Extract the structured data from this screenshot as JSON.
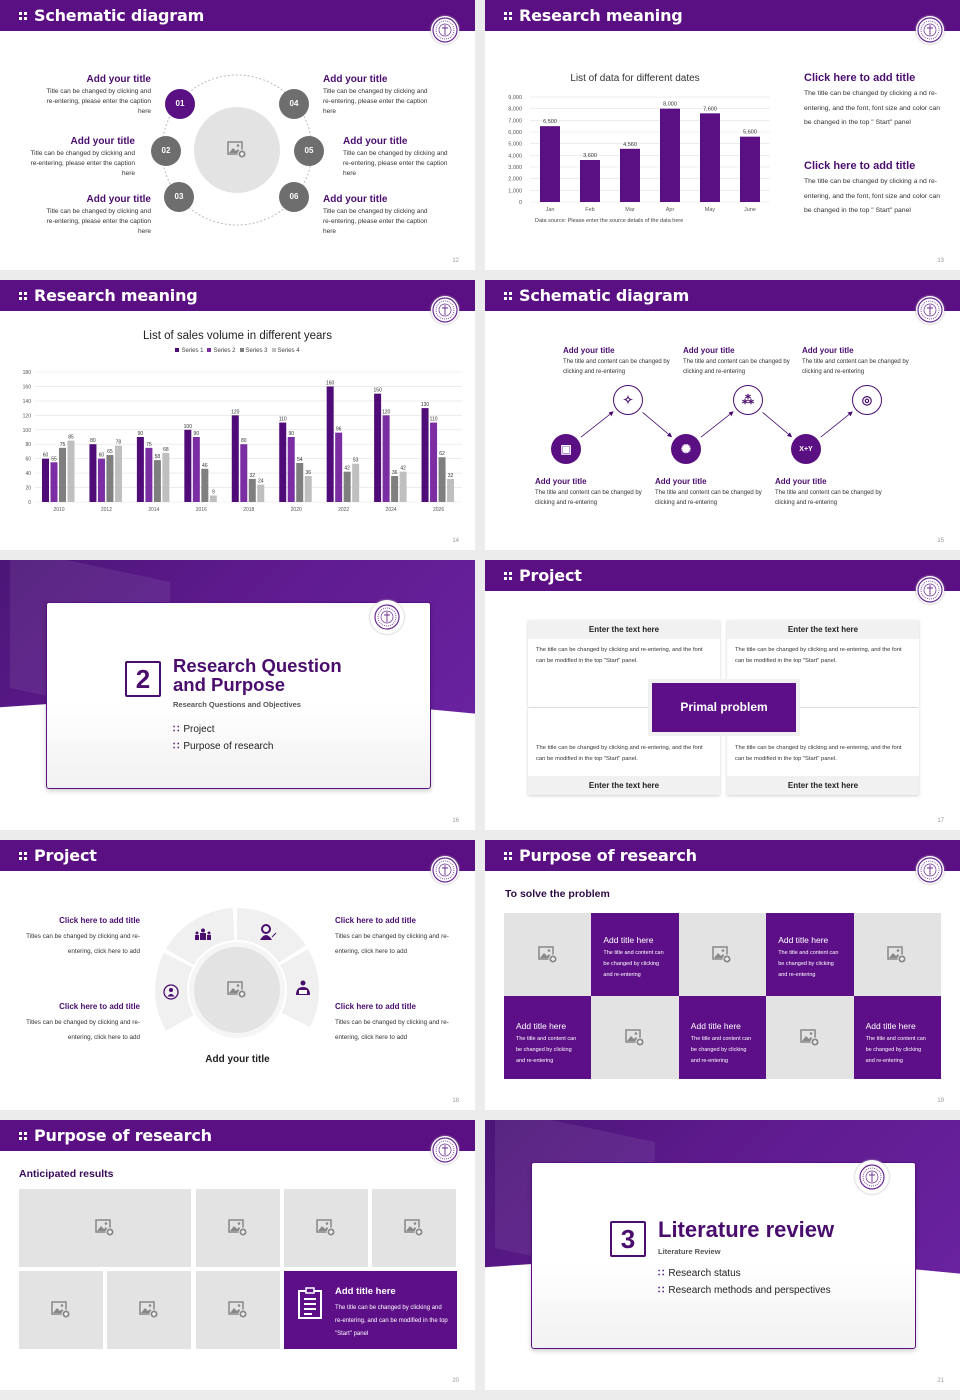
{
  "colors": {
    "primary": "#5a0f82",
    "title": "#4a0d6e",
    "gray": "#e3e3e3",
    "dark_gray": "#6e6e6e"
  },
  "slides": [
    {
      "title": "Schematic diagram",
      "page": "12",
      "center_icon": "image-placeholder-icon",
      "items": [
        {
          "num": "01",
          "title": "Add your title",
          "text": "Title can be changed by clicking and re-entering, please enter the caption here"
        },
        {
          "num": "02",
          "title": "Add your title",
          "text": "Title can be changed by clicking and re-entering, please enter the caption here"
        },
        {
          "num": "03",
          "title": "Add your title",
          "text": "Title can be changed by clicking and re-entering, please enter the caption here"
        },
        {
          "num": "04",
          "title": "Add your title",
          "text": "Title can be changed by clicking and re-entering, please enter the caption here"
        },
        {
          "num": "05",
          "title": "Add your title",
          "text": "Title can be changed by clicking and re-entering, please enter the caption here"
        },
        {
          "num": "06",
          "title": "Add your title",
          "text": "Title can be changed by clicking and re-entering, please enter the caption here"
        }
      ]
    },
    {
      "title": "Research meaning",
      "page": "13",
      "source": "Data source: Please enter the source details of the data here",
      "side": [
        {
          "title": "Click here to add title",
          "text": "The title can be changed by clicking a nd re-entering, and the font, font size and color can be changed in the top \" Start\" panel"
        },
        {
          "title": "Click here to add title",
          "text": "The title can be changed by clicking a nd re-entering, and the font, font size and color can be changed in the top \" Start\" panel"
        }
      ]
    },
    {
      "title": "Research meaning",
      "page": "14"
    },
    {
      "title": "Schematic diagram",
      "page": "15",
      "items": [
        {
          "title": "Add your title",
          "text": "The title and content can be changed by clicking and re-entering",
          "icon": "diagram-icon",
          "filled": true
        },
        {
          "title": "Add your title",
          "text": "The title and content can be changed by clicking and re-entering",
          "icon": "sparkles-icon",
          "filled": false
        },
        {
          "title": "Add your title",
          "text": "The title and content can be changed by clicking and re-entering",
          "icon": "network-icon",
          "filled": true
        },
        {
          "title": "Add your title",
          "text": "The title and content can be changed by clicking and re-entering",
          "icon": "connections-icon",
          "filled": false
        },
        {
          "title": "Add your title",
          "text": "The title and content can be changed by clicking and re-entering",
          "icon": "formula-icon",
          "icon_text": "X+Y",
          "filled": true
        },
        {
          "title": "Add your title",
          "text": "The title and content can be changed by clicking and re-entering",
          "icon": "target-icon",
          "filled": false
        }
      ]
    },
    {
      "page": "16",
      "number": "2",
      "title": "Research Question and Purpose",
      "subtitle": "Research Questions and Objectives",
      "items": [
        "Project",
        "Purpose of research"
      ]
    },
    {
      "title": "Project",
      "page": "17",
      "center": "Primal problem",
      "boxes": [
        {
          "heading": "Enter the text here",
          "text": "The title can be changed by clicking and re-entering, and the font can be modified in the top \"Start\" panel."
        },
        {
          "heading": "Enter the text here",
          "text": "The title can be changed by clicking and re-entering, and the font can be modified in the top \"Start\" panel."
        },
        {
          "heading": "Enter the text here",
          "text": "The title can be changed by clicking and re-entering, and the font can be modified in the top \"Start\" panel."
        },
        {
          "heading": "Enter the text here",
          "text": "The title can be changed by clicking and re-entering, and the font can be modified in the top \"Start\" panel."
        }
      ]
    },
    {
      "title": "Project",
      "page": "18",
      "caption": "Add your title",
      "items": [
        {
          "title": "Click here to add title",
          "text": "Titles can be changed by clicking and re-entering, click here to add"
        },
        {
          "title": "Click here to add title",
          "text": "Titles can be changed by clicking and re-entering, click here to add"
        },
        {
          "title": "Click here to add title",
          "text": "Titles can be changed by clicking and re-entering, click here to add"
        },
        {
          "title": "Click here to add title",
          "text": "Titles can be changed by clicking and re-entering, click here to add"
        }
      ],
      "icons": [
        "person-circle-icon",
        "team-icon",
        "teacher-icon",
        "reader-icon"
      ]
    },
    {
      "title": "Purpose of research",
      "page": "19",
      "subtitle": "To solve the problem",
      "cells": [
        {
          "title": "Add title here",
          "text": "The title and content can be changed by clicking and re-entering"
        },
        {
          "title": "Add title here",
          "text": "The title and content can be changed by clicking and re-entering"
        },
        {
          "title": "Add title here",
          "text": "The title and content can be changed by clicking and re-entering"
        },
        {
          "title": "Add title here",
          "text": "The title and content can be changed by clicking and re-entering"
        },
        {
          "title": "Add title here",
          "text": "The title and content can be changed by clicking and re-entering"
        }
      ]
    },
    {
      "title": "Purpose of research",
      "page": "20",
      "subtitle": "Anticipated results",
      "card": {
        "title": "Add title here",
        "text": "The title can be changed by clicking and re-entering, and can be modified in the top \"Start\" panel",
        "icon": "clipboard-icon"
      }
    },
    {
      "page": "21",
      "number": "3",
      "title": "Literature review",
      "subtitle": "Literature Review",
      "items": [
        "Research status",
        "Research methods and perspectives"
      ]
    }
  ],
  "chart_data": [
    {
      "type": "bar",
      "title": "List of data for different dates",
      "categories": [
        "Jan",
        "Feb",
        "Mar",
        "Apr",
        "May",
        "June"
      ],
      "values": [
        6500,
        3600,
        4560,
        8000,
        7600,
        5600
      ],
      "ylim": [
        0,
        9000
      ],
      "yticks": [
        0,
        1000,
        2000,
        3000,
        4000,
        5000,
        6000,
        7000,
        8000,
        9000
      ],
      "grid": true,
      "color": "#5a0f82",
      "data_labels": true
    },
    {
      "type": "bar",
      "title": "List of sales volume in different years",
      "categories": [
        "2010",
        "2012",
        "2014",
        "2016",
        "2018",
        "2020",
        "2022",
        "2024",
        "2026"
      ],
      "series": [
        {
          "name": "Series 1",
          "color": "#4f0b78",
          "values": [
            60,
            80,
            90,
            100,
            120,
            110,
            160,
            150,
            130
          ]
        },
        {
          "name": "Series 2",
          "color": "#7b2ea3",
          "values": [
            55,
            60,
            75,
            90,
            80,
            90,
            96,
            120,
            110
          ]
        },
        {
          "name": "Series 3",
          "color": "#7f7f7f",
          "values": [
            75,
            65,
            58,
            46,
            32,
            54,
            42,
            36,
            62
          ]
        },
        {
          "name": "Series 4",
          "color": "#bfbfbf",
          "values": [
            85,
            78,
            68,
            9,
            24,
            36,
            53,
            42,
            32
          ]
        }
      ],
      "ylim": [
        0,
        180
      ],
      "yticks": [
        0,
        20,
        40,
        60,
        80,
        100,
        120,
        140,
        160,
        180
      ],
      "grid": true,
      "legend": "top",
      "data_labels": true
    }
  ]
}
